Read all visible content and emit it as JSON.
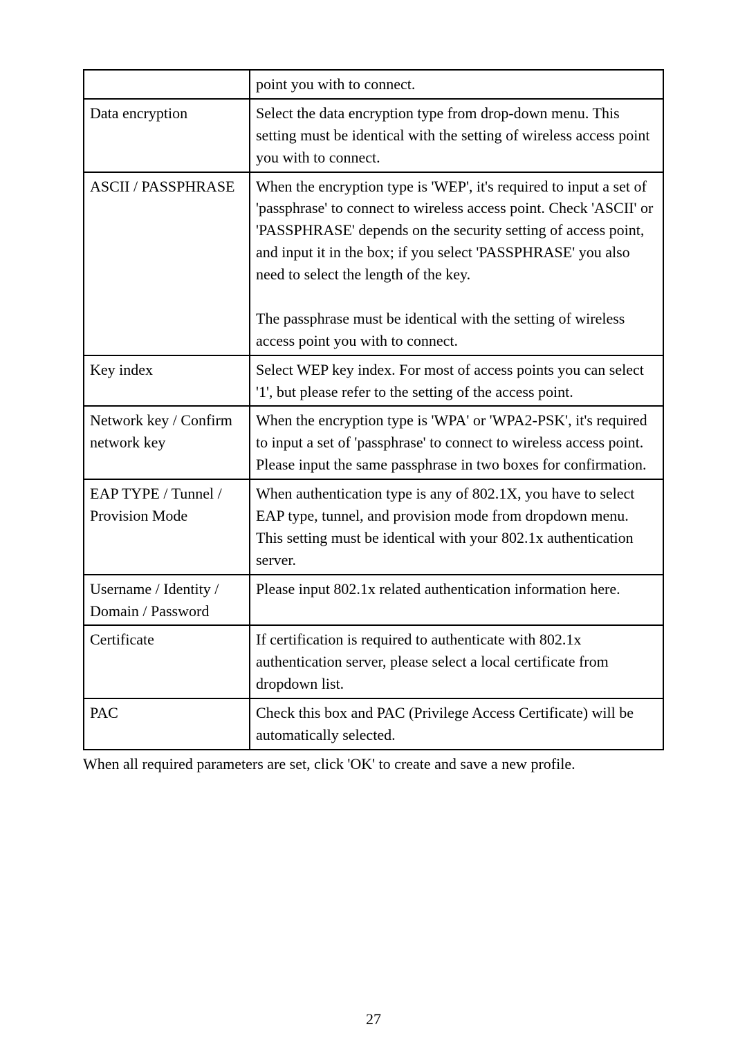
{
  "table": {
    "rows": [
      {
        "label": "",
        "desc": "point you with to connect."
      },
      {
        "label": "Data encryption",
        "desc": "Select the data encryption type from drop-down menu. This setting must be identical with the setting of wireless access point you with to connect."
      },
      {
        "label": "ASCII / PASSPHRASE",
        "desc": "When the encryption type is 'WEP', it's required to input a set of 'passphrase' to connect to wireless access point. Check 'ASCII' or 'PASSPHRASE' depends on the security setting of access point, and input it in the box; if you select 'PASSPHRASE' you also need to select the length of the key.",
        "desc2": "The passphrase must be identical with the setting of wireless access point you with to connect."
      },
      {
        "label": "Key index",
        "desc": "Select WEP key index. For most of access points you can select '1', but please refer to the setting of the access point."
      },
      {
        "label": "Network key / Confirm network key",
        "desc": "When the encryption type is 'WPA' or 'WPA2-PSK', it's required to input a set of 'passphrase' to connect to wireless access point. Please input the same passphrase in two boxes for confirmation."
      },
      {
        "label": "EAP TYPE / Tunnel / Provision Mode",
        "desc": "When authentication type is any of 802.1X, you have to select EAP type, tunnel, and provision mode from dropdown menu. This setting must be identical with your 802.1x authentication server."
      },
      {
        "label": "Username / Identity / Domain / Password",
        "desc": "Please input 802.1x related authentication information here."
      },
      {
        "label": "Certificate",
        "desc": "If certification is required to authenticate with 802.1x authentication server, please select a local certificate from dropdown list."
      },
      {
        "label": "PAC",
        "desc": "Check this box and PAC (Privilege Access Certificate) will be automatically selected."
      }
    ]
  },
  "footnote": "When all required parameters are set, click 'OK' to create and save a new profile.",
  "page_number": "27"
}
